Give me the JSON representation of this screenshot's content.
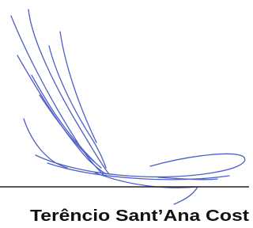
{
  "signature": {
    "name": "Terêncio Sant’Ana Cost"
  }
}
